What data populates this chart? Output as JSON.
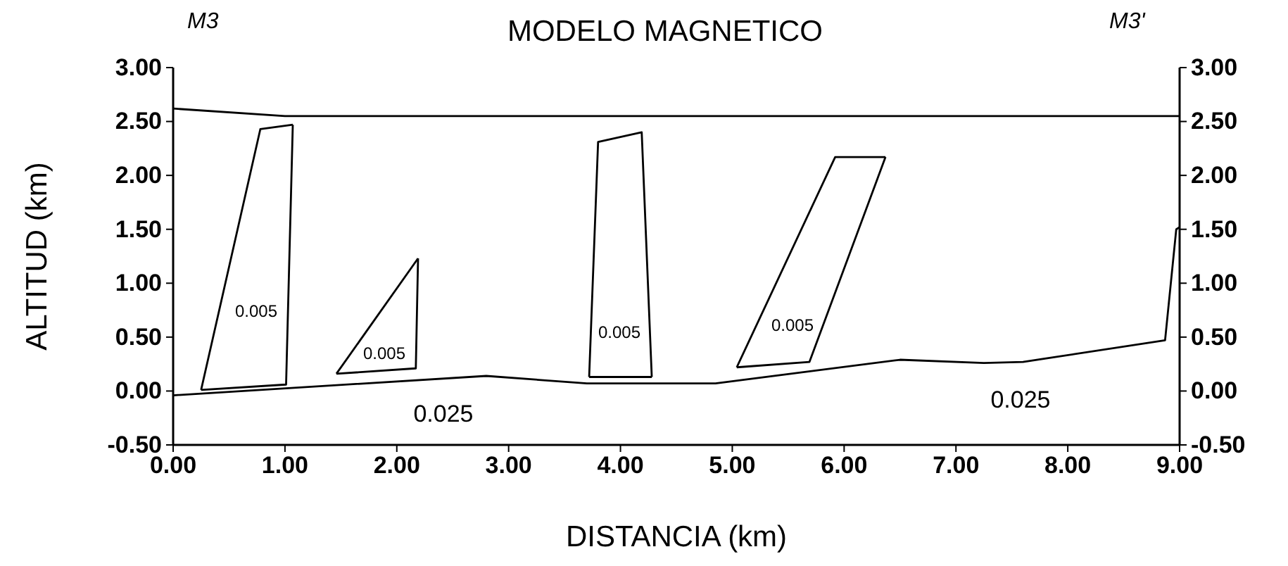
{
  "chart_data": {
    "type": "line",
    "title": "MODELO MAGNETICO",
    "xlabel": "DISTANCIA (km)",
    "ylabel": "ALTITUD (km)",
    "xlim": [
      0,
      9
    ],
    "xticks": [
      {
        "value": 0,
        "label": "0.00"
      },
      {
        "value": 1,
        "label": "1.00"
      },
      {
        "value": 2,
        "label": "2.00"
      },
      {
        "value": 3,
        "label": "3.00"
      },
      {
        "value": 4,
        "label": "4.00"
      },
      {
        "value": 5,
        "label": "5.00"
      },
      {
        "value": 6,
        "label": "6.00"
      },
      {
        "value": 7,
        "label": "7.00"
      },
      {
        "value": 8,
        "label": "8.00"
      },
      {
        "value": 9,
        "label": "9.00"
      }
    ],
    "ylim": [
      -0.5,
      3
    ],
    "yticks": [
      {
        "value": -0.5,
        "label": "-0.50"
      },
      {
        "value": 0,
        "label": "0.00"
      },
      {
        "value": 0.5,
        "label": "0.50"
      },
      {
        "value": 1,
        "label": "1.00"
      },
      {
        "value": 1.5,
        "label": "1.50"
      },
      {
        "value": 2,
        "label": "2.00"
      },
      {
        "value": 2.5,
        "label": "2.50"
      },
      {
        "value": 3,
        "label": "3.00"
      }
    ],
    "y2lim": [
      -0.5,
      3
    ],
    "y2ticks": [
      {
        "value": -0.5,
        "label": "-0.50"
      },
      {
        "value": 0,
        "label": "0.00"
      },
      {
        "value": 0.5,
        "label": "0.50"
      },
      {
        "value": 1,
        "label": "1.00"
      },
      {
        "value": 1.5,
        "label": "1.50"
      },
      {
        "value": 2,
        "label": "2.00"
      },
      {
        "value": 2.5,
        "label": "2.50"
      },
      {
        "value": 3,
        "label": "3.00"
      }
    ],
    "grid": false,
    "marker": "none",
    "line_style": "solid",
    "series": [
      {
        "color": "#000000",
        "x": [
          0,
          1.0,
          9
        ],
        "values": [
          2.62,
          2.55,
          2.55
        ]
      },
      {
        "color": "#000000",
        "x": [
          0,
          2.8,
          3.7,
          4.85,
          6.5,
          7.25,
          7.6,
          8.87,
          8.97,
          9
        ],
        "values": [
          -0.04,
          0.14,
          0.07,
          0.07,
          0.29,
          0.26,
          0.27,
          0.47,
          1.5,
          1.52
        ]
      },
      {
        "color": "#000000",
        "x": [
          0.25,
          0.78,
          1.07
        ],
        "values": [
          0.01,
          2.43,
          2.47
        ]
      },
      {
        "color": "#000000",
        "x": [
          0.25,
          1.01,
          1.07
        ],
        "values": [
          0.01,
          0.06,
          2.47
        ]
      },
      {
        "color": "#000000",
        "x": [
          1.46,
          2.19
        ],
        "values": [
          0.16,
          1.23
        ]
      },
      {
        "color": "#000000",
        "x": [
          1.46,
          2.17,
          2.19
        ],
        "values": [
          0.16,
          0.21,
          1.23
        ]
      },
      {
        "color": "#000000",
        "x": [
          3.72,
          3.8,
          4.19,
          4.28
        ],
        "values": [
          0.13,
          2.31,
          2.4,
          0.13
        ]
      },
      {
        "color": "#000000",
        "x": [
          3.72,
          4.28
        ],
        "values": [
          0.13,
          0.13
        ]
      },
      {
        "color": "#000000",
        "x": [
          5.04,
          5.92,
          6.37
        ],
        "values": [
          0.22,
          2.17,
          2.17
        ]
      },
      {
        "color": "#000000",
        "x": [
          5.04,
          5.69,
          6.37
        ],
        "values": [
          0.22,
          0.27,
          2.17
        ]
      }
    ],
    "annotations": [
      "M3",
      "M3'",
      "0.005",
      "0.005",
      "0.005",
      "0.005",
      "0.025",
      "0.025"
    ]
  }
}
